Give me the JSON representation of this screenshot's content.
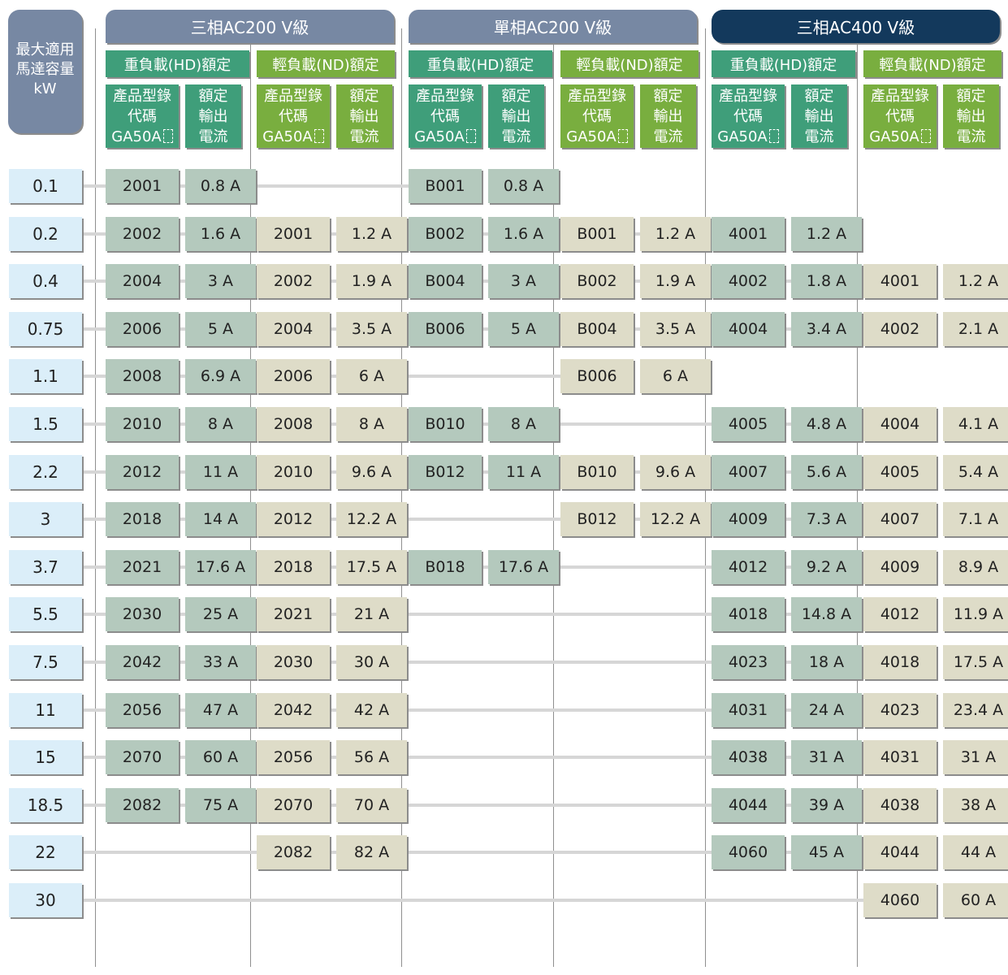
{
  "corner_label": [
    "最大適用",
    "馬達容量",
    "kW"
  ],
  "groups": [
    {
      "title": "三相AC200 V級",
      "hd_label": "重負載(HD)額定",
      "nd_label": "輕負載(ND)額定"
    },
    {
      "title": "單相AC200 V級",
      "hd_label": "重負載(HD)額定",
      "nd_label": "輕負載(ND)額定"
    },
    {
      "title": "三相AC400 V級",
      "hd_label": "重負載(HD)額定",
      "nd_label": "輕負載(ND)額定"
    }
  ],
  "code_header": [
    "產品型錄",
    "代碼",
    "GA50A"
  ],
  "current_header": [
    "額定",
    "輸出",
    "電流"
  ],
  "kw_values": [
    "0.1",
    "0.2",
    "0.4",
    "0.75",
    "1.1",
    "1.5",
    "2.2",
    "3",
    "3.7",
    "5.5",
    "7.5",
    "11",
    "15",
    "18.5",
    "22",
    "30"
  ],
  "columns": [
    [
      [
        "2001",
        "0.8 A"
      ],
      [
        "2002",
        "1.6 A"
      ],
      [
        "2004",
        "3 A"
      ],
      [
        "2006",
        "5 A"
      ],
      [
        "2008",
        "6.9 A"
      ],
      [
        "2010",
        "8 A"
      ],
      [
        "2012",
        "11 A"
      ],
      [
        "2018",
        "14 A"
      ],
      [
        "2021",
        "17.6 A"
      ],
      [
        "2030",
        "25 A"
      ],
      [
        "2042",
        "33 A"
      ],
      [
        "2056",
        "47 A"
      ],
      [
        "2070",
        "60 A"
      ],
      [
        "2082",
        "75 A"
      ],
      null,
      null
    ],
    [
      null,
      [
        "2001",
        "1.2 A"
      ],
      [
        "2002",
        "1.9 A"
      ],
      [
        "2004",
        "3.5 A"
      ],
      [
        "2006",
        "6 A"
      ],
      [
        "2008",
        "8 A"
      ],
      [
        "2010",
        "9.6 A"
      ],
      [
        "2012",
        "12.2 A"
      ],
      [
        "2018",
        "17.5 A"
      ],
      [
        "2021",
        "21 A"
      ],
      [
        "2030",
        "30 A"
      ],
      [
        "2042",
        "42 A"
      ],
      [
        "2056",
        "56 A"
      ],
      [
        "2070",
        "70 A"
      ],
      [
        "2082",
        "82 A"
      ],
      null
    ],
    [
      [
        "B001",
        "0.8 A"
      ],
      [
        "B002",
        "1.6 A"
      ],
      [
        "B004",
        "3 A"
      ],
      [
        "B006",
        "5 A"
      ],
      null,
      [
        "B010",
        "8 A"
      ],
      [
        "B012",
        "11 A"
      ],
      null,
      [
        "B018",
        "17.6 A"
      ],
      null,
      null,
      null,
      null,
      null,
      null,
      null
    ],
    [
      null,
      [
        "B001",
        "1.2 A"
      ],
      [
        "B002",
        "1.9 A"
      ],
      [
        "B004",
        "3.5 A"
      ],
      [
        "B006",
        "6 A"
      ],
      null,
      [
        "B010",
        "9.6 A"
      ],
      [
        "B012",
        "12.2 A"
      ],
      null,
      null,
      null,
      null,
      null,
      null,
      null,
      null
    ],
    [
      null,
      [
        "4001",
        "1.2 A"
      ],
      [
        "4002",
        "1.8 A"
      ],
      [
        "4004",
        "3.4 A"
      ],
      null,
      [
        "4005",
        "4.8 A"
      ],
      [
        "4007",
        "5.6 A"
      ],
      [
        "4009",
        "7.3 A"
      ],
      [
        "4012",
        "9.2 A"
      ],
      [
        "4018",
        "14.8 A"
      ],
      [
        "4023",
        "18 A"
      ],
      [
        "4031",
        "24 A"
      ],
      [
        "4038",
        "31 A"
      ],
      [
        "4044",
        "39 A"
      ],
      [
        "4060",
        "45 A"
      ],
      null
    ],
    [
      null,
      null,
      [
        "4001",
        "1.2 A"
      ],
      [
        "4002",
        "2.1 A"
      ],
      null,
      [
        "4004",
        "4.1 A"
      ],
      [
        "4005",
        "5.4 A"
      ],
      [
        "4007",
        "7.1 A"
      ],
      [
        "4009",
        "8.9 A"
      ],
      [
        "4012",
        "11.9 A"
      ],
      [
        "4018",
        "17.5 A"
      ],
      [
        "4023",
        "23.4 A"
      ],
      [
        "4031",
        "31 A"
      ],
      [
        "4038",
        "38 A"
      ],
      [
        "4044",
        "44 A"
      ],
      [
        "4060",
        "60 A"
      ]
    ]
  ],
  "colors": {
    "header_grey": "#7788a3",
    "header_dark": "#13395c",
    "hd_green": "#3f9e7a",
    "nd_green": "#79ae3f",
    "hd_cell": "#b4c9bd",
    "nd_cell": "#dedcc8",
    "kw_cell": "#dbeef9"
  }
}
